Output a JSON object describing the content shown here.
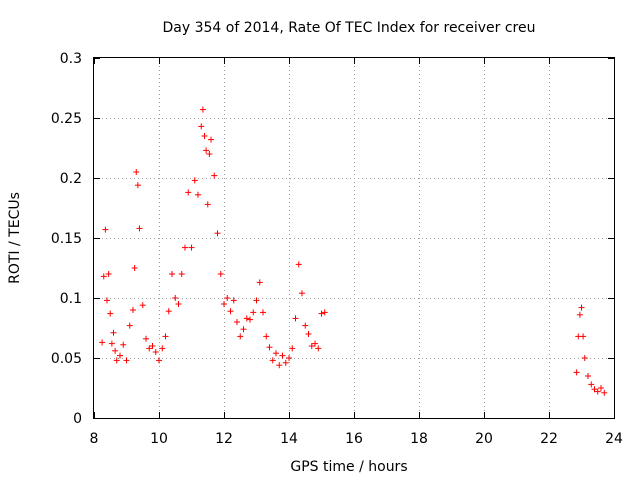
{
  "chart_data": {
    "type": "scatter",
    "title": "Day 354 of 2014, Rate Of TEC Index for receiver creu",
    "xlabel": "GPS time / hours",
    "ylabel": "ROTI / TECUs",
    "xlim": [
      8,
      24
    ],
    "ylim": [
      0,
      0.3
    ],
    "xticks": [
      "8",
      "10",
      "12",
      "14",
      "16",
      "18",
      "20",
      "22",
      "24"
    ],
    "yticks": [
      "0",
      "0.05",
      "0.1",
      "0.15",
      "0.2",
      "0.25",
      "0.3"
    ],
    "grid": true,
    "marker": "+",
    "color": "#ff0000",
    "series": [
      {
        "name": "ROTI",
        "x": [
          8.25,
          8.3,
          8.35,
          8.4,
          8.45,
          8.5,
          8.55,
          8.6,
          8.65,
          8.7,
          8.8,
          8.9,
          9.0,
          9.1,
          9.2,
          9.25,
          9.3,
          9.35,
          9.4,
          9.5,
          9.6,
          9.7,
          9.8,
          9.9,
          10.0,
          10.1,
          10.2,
          10.3,
          10.4,
          10.5,
          10.6,
          10.7,
          10.8,
          10.9,
          11.0,
          11.1,
          11.2,
          11.3,
          11.35,
          11.4,
          11.45,
          11.5,
          11.55,
          11.6,
          11.7,
          11.8,
          11.9,
          12.0,
          12.1,
          12.2,
          12.3,
          12.4,
          12.5,
          12.6,
          12.7,
          12.8,
          12.9,
          13.0,
          13.1,
          13.2,
          13.3,
          13.4,
          13.5,
          13.6,
          13.7,
          13.8,
          13.9,
          14.0,
          14.1,
          14.2,
          14.3,
          14.4,
          14.5,
          14.6,
          14.7,
          14.8,
          14.9,
          15.0,
          15.1,
          22.85,
          22.9,
          22.95,
          23.0,
          23.05,
          23.1,
          23.2,
          23.3,
          23.4,
          23.5,
          23.6,
          23.7
        ],
        "y": [
          0.063,
          0.118,
          0.157,
          0.098,
          0.12,
          0.087,
          0.062,
          0.071,
          0.056,
          0.048,
          0.052,
          0.061,
          0.048,
          0.077,
          0.09,
          0.125,
          0.205,
          0.194,
          0.158,
          0.094,
          0.066,
          0.058,
          0.06,
          0.055,
          0.048,
          0.058,
          0.068,
          0.089,
          0.12,
          0.1,
          0.095,
          0.12,
          0.142,
          0.188,
          0.142,
          0.198,
          0.186,
          0.243,
          0.257,
          0.235,
          0.223,
          0.178,
          0.22,
          0.232,
          0.202,
          0.154,
          0.12,
          0.095,
          0.1,
          0.089,
          0.098,
          0.08,
          0.068,
          0.074,
          0.083,
          0.082,
          0.088,
          0.098,
          0.113,
          0.088,
          0.068,
          0.059,
          0.048,
          0.054,
          0.044,
          0.052,
          0.046,
          0.05,
          0.058,
          0.083,
          0.128,
          0.104,
          0.077,
          0.07,
          0.06,
          0.062,
          0.058,
          0.087,
          0.088,
          0.038,
          0.068,
          0.086,
          0.092,
          0.068,
          0.05,
          0.035,
          0.028,
          0.024,
          0.022,
          0.025,
          0.021
        ]
      }
    ]
  }
}
